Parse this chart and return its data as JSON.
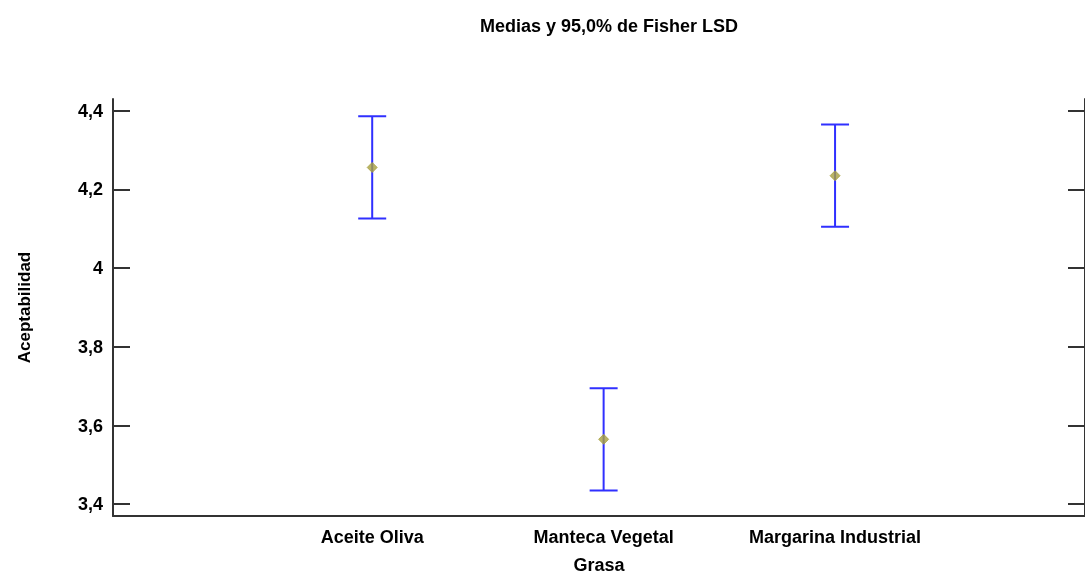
{
  "chart_data": {
    "type": "scatter",
    "title": "Medias y 95,0% de Fisher LSD",
    "xlabel": "Grasa",
    "ylabel": "Aceptabilidad",
    "categories": [
      "Aceite Oliva",
      "Manteca Vegetal",
      "Margarina Industrial"
    ],
    "series": [
      {
        "color": "#a8a040",
        "values": [
          4.256,
          3.565,
          4.235
        ],
        "errors": [
          0.13,
          0.13,
          0.13
        ]
      }
    ],
    "ylim": [
      3.37,
      4.43
    ],
    "yticks": [
      {
        "value": 3.4,
        "label": "3,4"
      },
      {
        "value": 3.6,
        "label": "3,6"
      },
      {
        "value": 3.8,
        "label": "3,8"
      },
      {
        "value": 4,
        "label": "4"
      },
      {
        "value": 4.2,
        "label": "4,2"
      },
      {
        "value": 4.4,
        "label": "4,4"
      }
    ],
    "marker": "diamond",
    "grid": false
  }
}
